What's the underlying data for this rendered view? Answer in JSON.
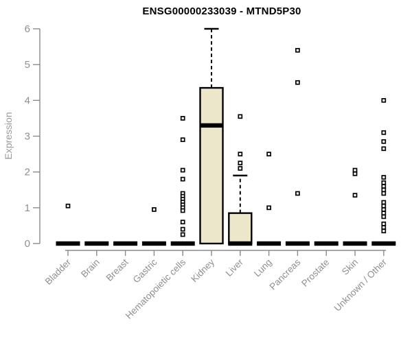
{
  "chart_data": {
    "type": "boxplot",
    "title": "ENSG00000233039 - MTND5P30",
    "ylabel": "Expression",
    "xlabel": "",
    "ylim": [
      0,
      6
    ],
    "yticks": [
      0,
      1,
      2,
      3,
      4,
      5,
      6
    ],
    "grid": false,
    "legend": false,
    "categories": [
      "Bladder",
      "Brain",
      "Breast",
      "Gastric",
      "Hematopoietic cells",
      "Kidney",
      "Liver",
      "Lung",
      "Pancreas",
      "Prostate",
      "Skin",
      "Unknown / Other"
    ],
    "boxes": [
      {
        "category": "Bladder",
        "q1": 0,
        "median": 0,
        "q3": 0,
        "whisker_low": 0,
        "whisker_high": 0,
        "outliers": [
          1.05
        ]
      },
      {
        "category": "Brain",
        "q1": 0,
        "median": 0,
        "q3": 0,
        "whisker_low": 0,
        "whisker_high": 0,
        "outliers": []
      },
      {
        "category": "Breast",
        "q1": 0,
        "median": 0,
        "q3": 0,
        "whisker_low": 0,
        "whisker_high": 0,
        "outliers": []
      },
      {
        "category": "Gastric",
        "q1": 0,
        "median": 0,
        "q3": 0,
        "whisker_low": 0,
        "whisker_high": 0,
        "outliers": [
          0.95
        ]
      },
      {
        "category": "Hematopoietic cells",
        "q1": 0,
        "median": 0,
        "q3": 0,
        "whisker_low": 0,
        "whisker_high": 0,
        "outliers": [
          3.5,
          2.9,
          2.05,
          1.8,
          1.4,
          1.32,
          1.24,
          1.16,
          1.08,
          1.0,
          0.92,
          0.6,
          0.4,
          0.25
        ]
      },
      {
        "category": "Kidney",
        "q1": 0,
        "median": 3.3,
        "q3": 4.35,
        "whisker_low": 0,
        "whisker_high": 6.0,
        "outliers": []
      },
      {
        "category": "Liver",
        "q1": 0,
        "median": 0,
        "q3": 0.85,
        "whisker_low": 0,
        "whisker_high": 1.9,
        "outliers": [
          3.55,
          2.5,
          2.25,
          2.1
        ]
      },
      {
        "category": "Lung",
        "q1": 0,
        "median": 0,
        "q3": 0,
        "whisker_low": 0,
        "whisker_high": 0,
        "outliers": [
          2.5,
          1.0
        ]
      },
      {
        "category": "Pancreas",
        "q1": 0,
        "median": 0,
        "q3": 0,
        "whisker_low": 0,
        "whisker_high": 0,
        "outliers": [
          5.4,
          4.5,
          1.4
        ]
      },
      {
        "category": "Prostate",
        "q1": 0,
        "median": 0,
        "q3": 0,
        "whisker_low": 0,
        "whisker_high": 0,
        "outliers": []
      },
      {
        "category": "Skin",
        "q1": 0,
        "median": 0,
        "q3": 0,
        "whisker_low": 0,
        "whisker_high": 0,
        "outliers": [
          2.05,
          1.95,
          1.35
        ]
      },
      {
        "category": "Unknown / Other",
        "q1": 0,
        "median": 0,
        "q3": 0,
        "whisker_low": 0,
        "whisker_high": 0,
        "outliers": [
          4.0,
          3.1,
          2.85,
          2.65,
          1.85,
          1.7,
          1.6,
          1.5,
          1.4,
          1.15,
          1.05,
          0.95,
          0.85,
          0.75,
          0.55,
          0.45,
          0.35
        ]
      }
    ],
    "colors": {
      "box_fill": "#ece6cb",
      "box_stroke": "#000000",
      "median": "#000000",
      "outlier": "#000000",
      "axis": "#8a8a8a",
      "tick_label": "#8f8f8f",
      "title": "#000000"
    }
  }
}
